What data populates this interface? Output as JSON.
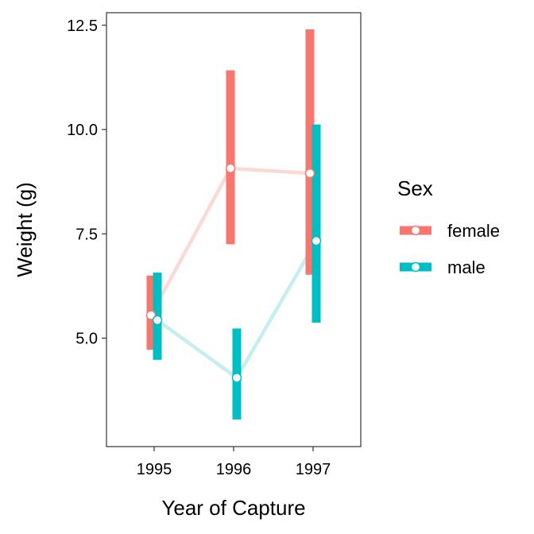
{
  "chart_data": {
    "type": "line",
    "xlabel": "Year of Capture",
    "ylabel": "Weight (g)",
    "x": [
      "1995",
      "1996",
      "1997"
    ],
    "ylim": [
      2.4,
      12.8
    ],
    "yticks": [
      "5.0",
      "7.5",
      "10.0",
      "12.5"
    ],
    "grid": false,
    "legend": {
      "title": "Sex",
      "position": "right"
    },
    "series": [
      {
        "name": "female",
        "color": "#F8766D",
        "line_color": "#FADAD5",
        "values": [
          5.55,
          9.07,
          8.95
        ],
        "lower": [
          4.72,
          7.25,
          6.52
        ],
        "upper": [
          6.5,
          11.42,
          12.4
        ]
      },
      {
        "name": "male",
        "color": "#00BFC4",
        "line_color": "#C4EEEF",
        "values": [
          5.43,
          4.05,
          7.33
        ],
        "lower": [
          4.48,
          3.05,
          5.37
        ],
        "upper": [
          6.57,
          5.23,
          10.12
        ]
      }
    ]
  }
}
